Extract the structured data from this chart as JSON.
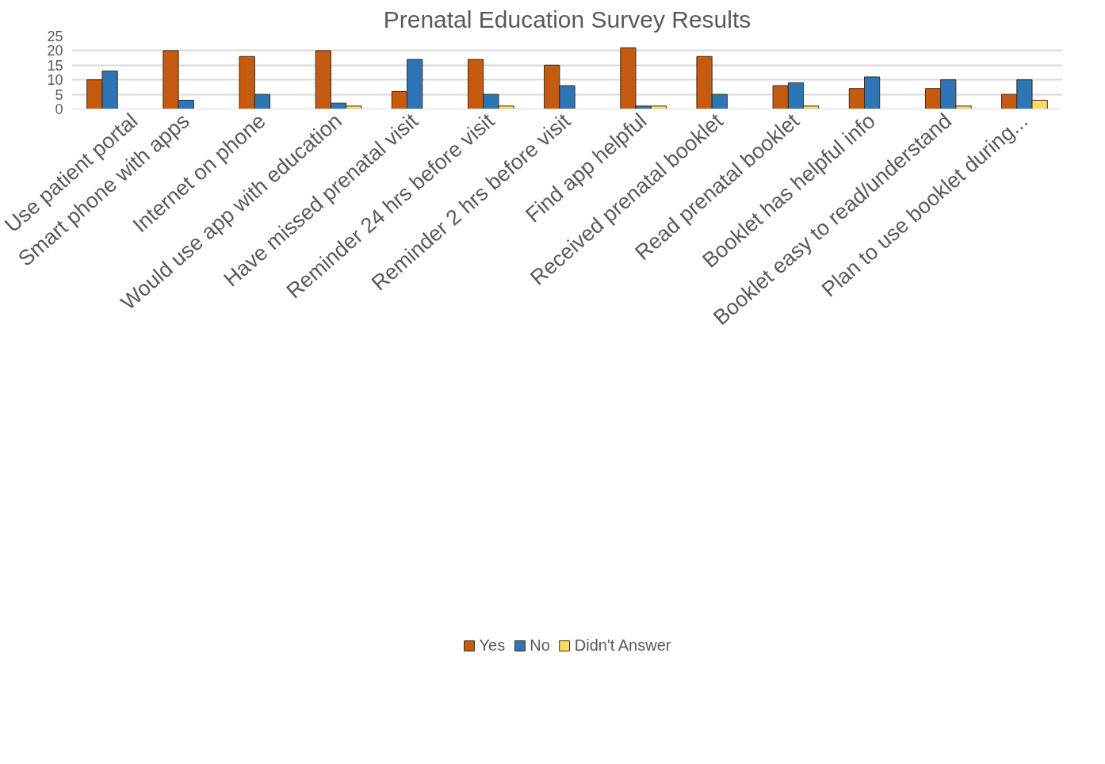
{
  "chart_data": {
    "type": "bar",
    "title": "Prenatal Education Survey Results",
    "categories": [
      "Use patient portal",
      "Smart phone with apps",
      "Internet on phone",
      "Would use app with education",
      "Have missed prenatal visit",
      "Reminder 24 hrs before visit",
      "Reminder 2 hrs before visit",
      "Find app helpful",
      "Received prenatal booklet",
      "Read prenatal booklet",
      "Booklet has helpful info",
      "Booklet easy to read/understand",
      "Plan to use booklet during..."
    ],
    "series": [
      {
        "name": "Yes",
        "color": "#c55a11",
        "values": [
          10,
          20,
          18,
          20,
          6,
          17,
          15,
          21,
          18,
          8,
          7,
          7,
          5
        ]
      },
      {
        "name": "No",
        "color": "#2e75b6",
        "values": [
          13,
          3,
          5,
          2,
          17,
          5,
          8,
          1,
          5,
          9,
          11,
          10,
          10
        ]
      },
      {
        "name": "Didn't Answer",
        "color": "#ffd966",
        "values": [
          null,
          null,
          null,
          1,
          null,
          1,
          null,
          1,
          null,
          1,
          null,
          1,
          3
        ]
      }
    ],
    "ylim": [
      0,
      25
    ],
    "yticks": [
      0,
      5,
      10,
      15,
      20,
      25
    ],
    "grid": "y",
    "legend": "bottom"
  }
}
